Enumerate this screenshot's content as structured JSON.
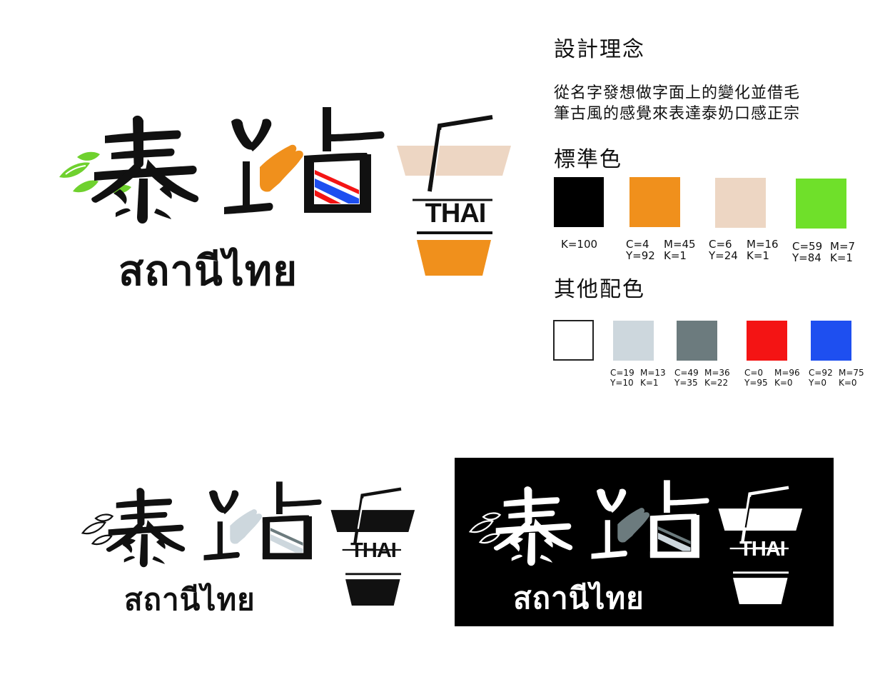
{
  "logo": {
    "brand_cn": "泰站",
    "brand_thai": "สถานีไทย",
    "cup_label": "THAI"
  },
  "concept": {
    "title": "設計理念",
    "line1": "從名字發想做字面上的變化並借毛",
    "line2": "筆古風的感覺來表達泰奶口感正宗"
  },
  "standard_colors": {
    "title": "標準色",
    "items": [
      {
        "color": "#000000",
        "l1a": "K=100",
        "l1b": "",
        "l2a": "",
        "l2b": ""
      },
      {
        "color": "#F0901C",
        "l1a": "C=4",
        "l1b": "M=45",
        "l2a": "Y=92",
        "l2b": "K=1"
      },
      {
        "color": "#EDD6C3",
        "l1a": "C=6",
        "l1b": "M=16",
        "l2a": "Y=24",
        "l2b": "K=1"
      },
      {
        "color": "#6FE02A",
        "l1a": "C=59",
        "l1b": "M=7",
        "l2a": "Y=84",
        "l2b": "K=1"
      }
    ]
  },
  "other_colors": {
    "title": "其他配色",
    "items": [
      {
        "color": "#FFFFFF",
        "l1a": "",
        "l1b": "",
        "l2a": "",
        "l2b": ""
      },
      {
        "color": "#CDD7DD",
        "l1a": "C=19",
        "l1b": "M=13",
        "l2a": "Y=10",
        "l2b": "K=1"
      },
      {
        "color": "#6C7B7E",
        "l1a": "C=49",
        "l1b": "M=36",
        "l2a": "Y=35",
        "l2b": "K=22"
      },
      {
        "color": "#F41414",
        "l1a": "C=0",
        "l1b": "M=96",
        "l2a": "Y=95",
        "l2b": "K=0"
      },
      {
        "color": "#1E4FF0",
        "l1a": "C=92",
        "l1b": "M=75",
        "l2a": "Y=0",
        "l2b": "K=0"
      }
    ]
  }
}
